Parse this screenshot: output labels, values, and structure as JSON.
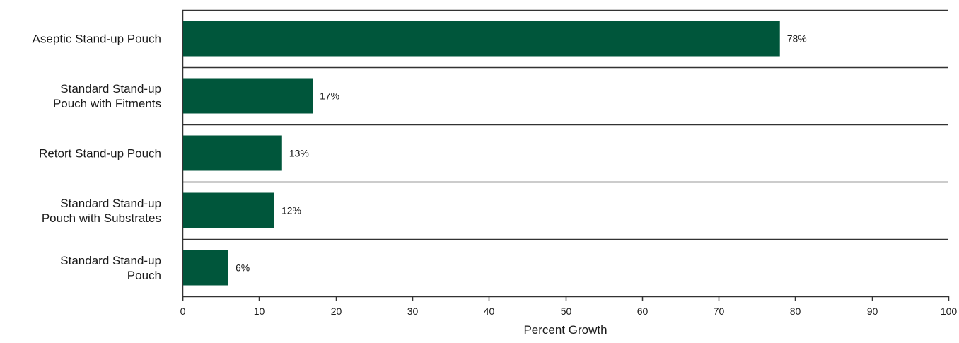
{
  "chart_data": {
    "type": "bar",
    "orientation": "horizontal",
    "categories": [
      [
        "Aseptic Stand-up Pouch"
      ],
      [
        "Standard Stand-up",
        "Pouch with Fitments"
      ],
      [
        "Retort Stand-up Pouch"
      ],
      [
        "Standard Stand-up",
        "Pouch with Substrates"
      ],
      [
        "Standard Stand-up",
        "Pouch"
      ]
    ],
    "values": [
      78,
      17,
      13,
      12,
      6
    ],
    "data_labels": [
      "78%",
      "17%",
      "13%",
      "12%",
      "6%"
    ],
    "xlabel": "Percent Growth",
    "ylabel": "",
    "title": "",
    "xlim": [
      0,
      100
    ],
    "xticks": [
      0,
      10,
      20,
      30,
      40,
      50,
      60,
      70,
      80,
      90,
      100
    ],
    "grid": "horizontal separators between categories",
    "legend": "none",
    "bar_color": "#00563b"
  }
}
